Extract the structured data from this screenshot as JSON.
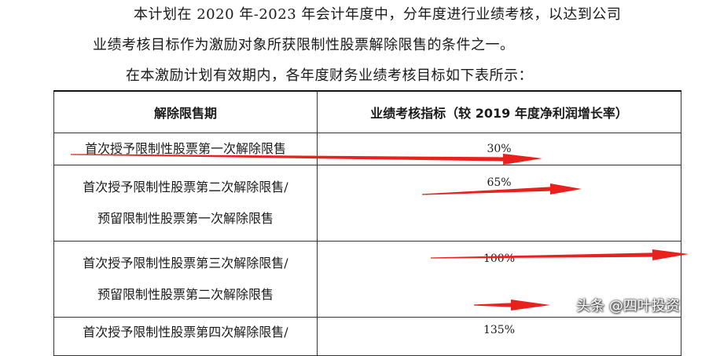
{
  "intro": {
    "line1": "本计划在 2020 年-2023 年会计年度中，分年度进行业绩考核，以达到公司",
    "line2": "业绩考核目标作为激励对象所获限制性股票解除限售的条件之一。",
    "line3": "在本激励计划有效期内，各年度财务业绩考核目标如下表所示："
  },
  "table": {
    "headers": [
      "解除限售期",
      "业绩考核指标（较 2019 年度净利润增长率）"
    ],
    "rows": [
      {
        "lines": [
          "首次授予限制性股票第一次解除限售"
        ],
        "value": "30%"
      },
      {
        "lines": [
          "首次授予限制性股票第二次解除限售/",
          "预留限制性股票第一次解除限售"
        ],
        "value": "65%"
      },
      {
        "lines": [
          "首次授予限制性股票第三次解除限售/",
          "预留限制性股票第二次解除限售"
        ],
        "value": "100%"
      },
      {
        "lines": [
          "首次授予限制性股票第四次解除限售/"
        ],
        "value": "135%"
      }
    ]
  },
  "annotation_color": "#e8201e",
  "watermark": "头条 @四叶投资"
}
